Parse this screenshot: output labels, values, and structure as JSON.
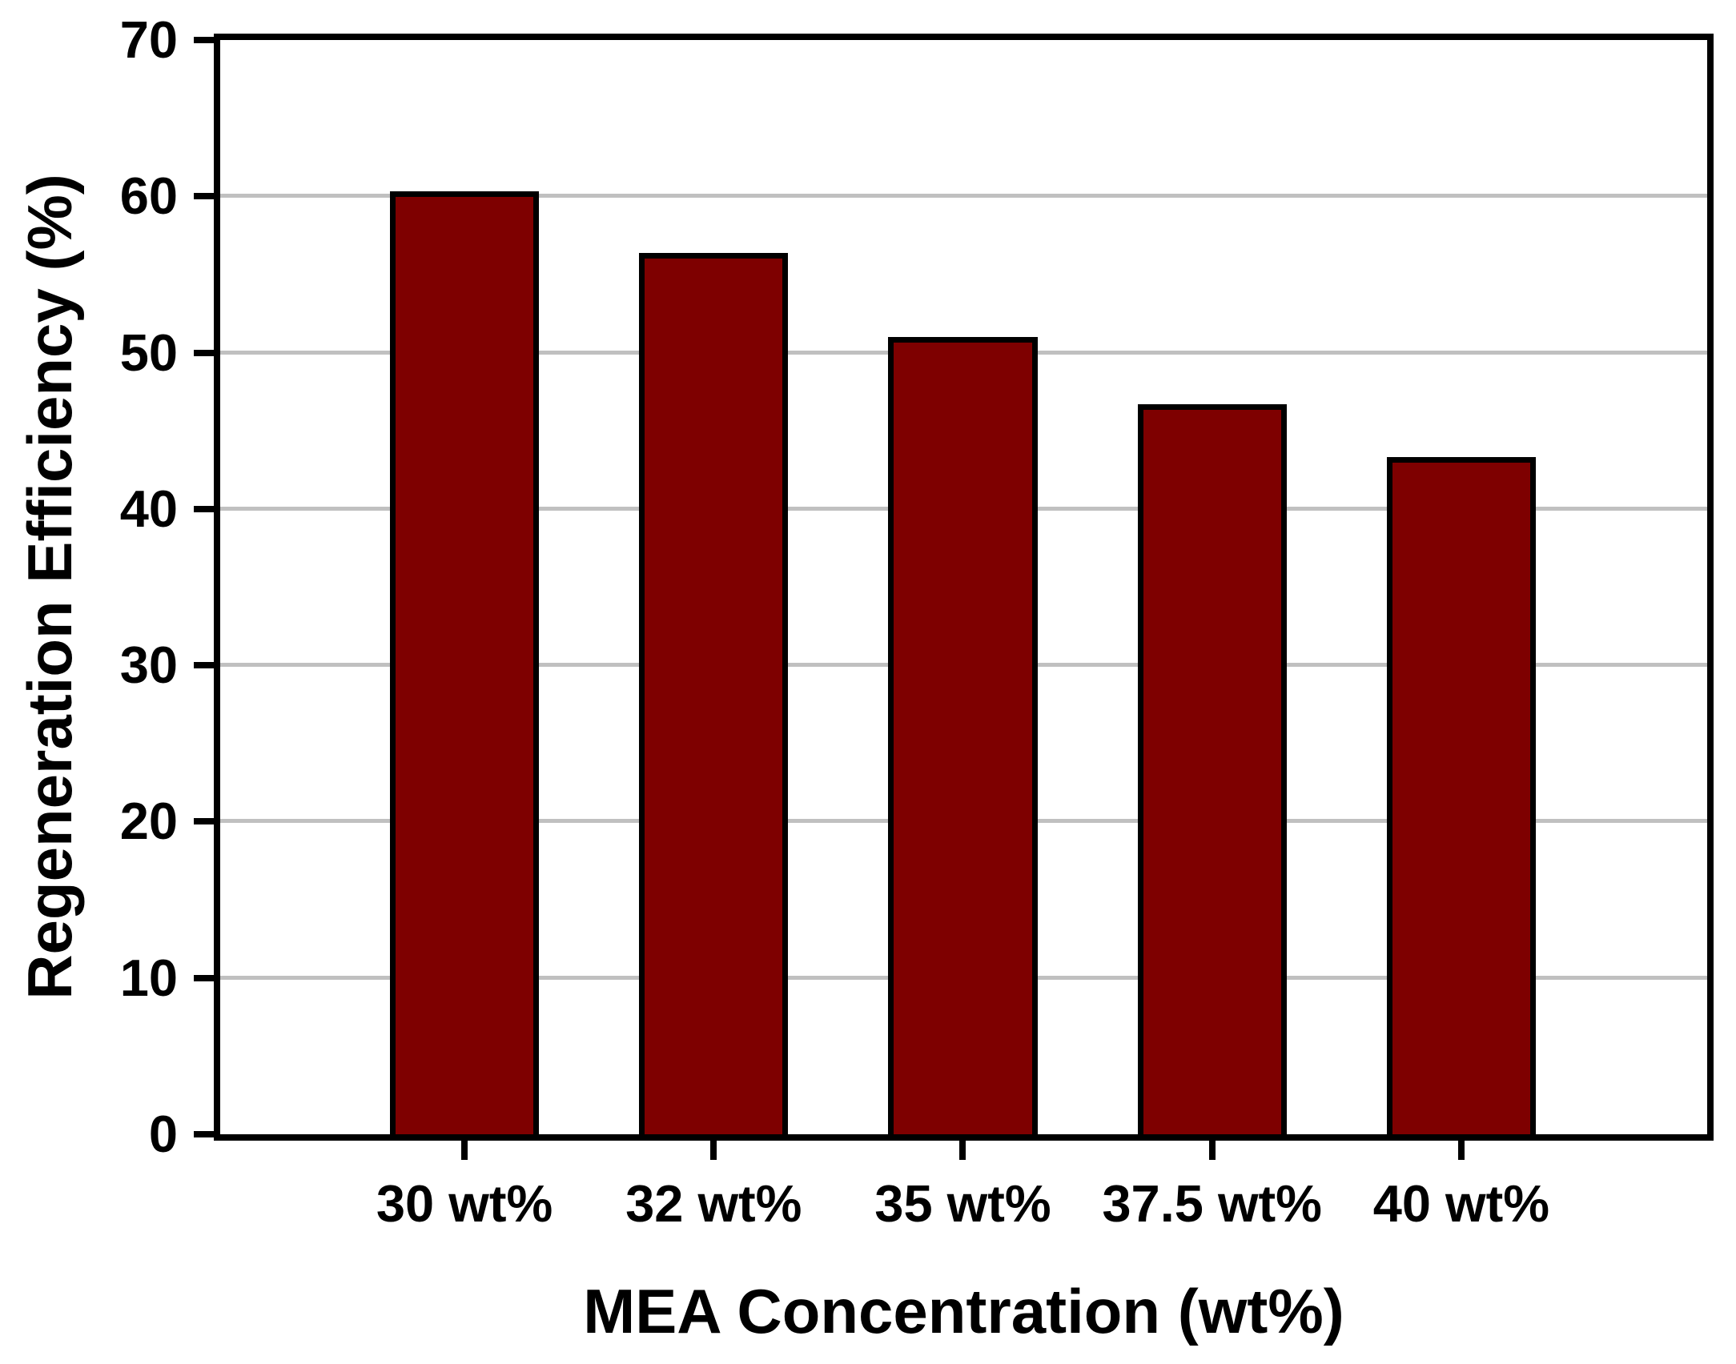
{
  "figure": {
    "background": "#ffffff",
    "text_color": "#000000"
  },
  "chart_data": {
    "type": "bar",
    "title": "",
    "xlabel": "MEA Concentration (wt%)",
    "ylabel": "Regeneration Efficiency (%)",
    "categories": [
      "30 wt%",
      "32 wt%",
      "35 wt%",
      "37.5 wt%",
      "40 wt%"
    ],
    "values": [
      60.3,
      56.4,
      51.0,
      46.7,
      43.3
    ],
    "ylim": [
      0,
      70
    ],
    "yticks": [
      0,
      10,
      20,
      30,
      40,
      50,
      60,
      70
    ],
    "grid": true,
    "legend_position": "none",
    "bar_fill_color": "#7e0000",
    "bar_border_color": "#000000",
    "gridline_color": "#c0c0c0",
    "axis_color": "#000000"
  }
}
